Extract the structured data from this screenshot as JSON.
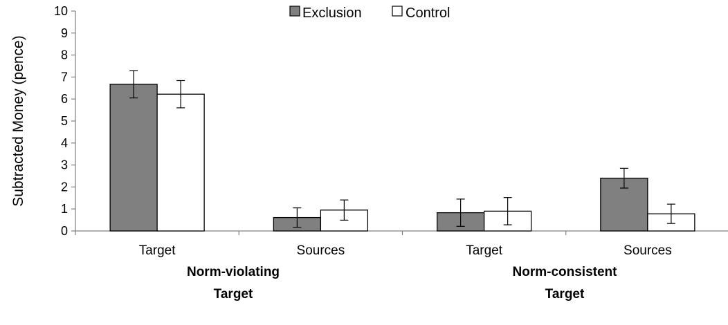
{
  "chart_data": {
    "type": "bar",
    "title": "",
    "xlabel": "",
    "ylabel": "Subtracted Money (pence)",
    "ylim": [
      0,
      10
    ],
    "yticks": [
      0,
      1,
      2,
      3,
      4,
      5,
      6,
      7,
      8,
      9,
      10
    ],
    "grid": false,
    "legend_position": "top-center",
    "categories": [
      "Target",
      "Sources",
      "Target",
      "Sources"
    ],
    "groups": [
      {
        "label_lines": [
          "Norm-violating",
          "Target"
        ]
      },
      {
        "label_lines": [
          "Norm-consistent",
          "Target"
        ]
      }
    ],
    "series": [
      {
        "name": "Exclusion",
        "color": "#808080",
        "values": [
          6.67,
          0.61,
          0.83,
          2.4
        ],
        "errors": [
          0.62,
          0.44,
          0.62,
          0.45
        ]
      },
      {
        "name": "Control",
        "color": "#ffffff",
        "values": [
          6.22,
          0.95,
          0.9,
          0.78
        ],
        "errors": [
          0.62,
          0.46,
          0.62,
          0.44
        ]
      }
    ]
  }
}
